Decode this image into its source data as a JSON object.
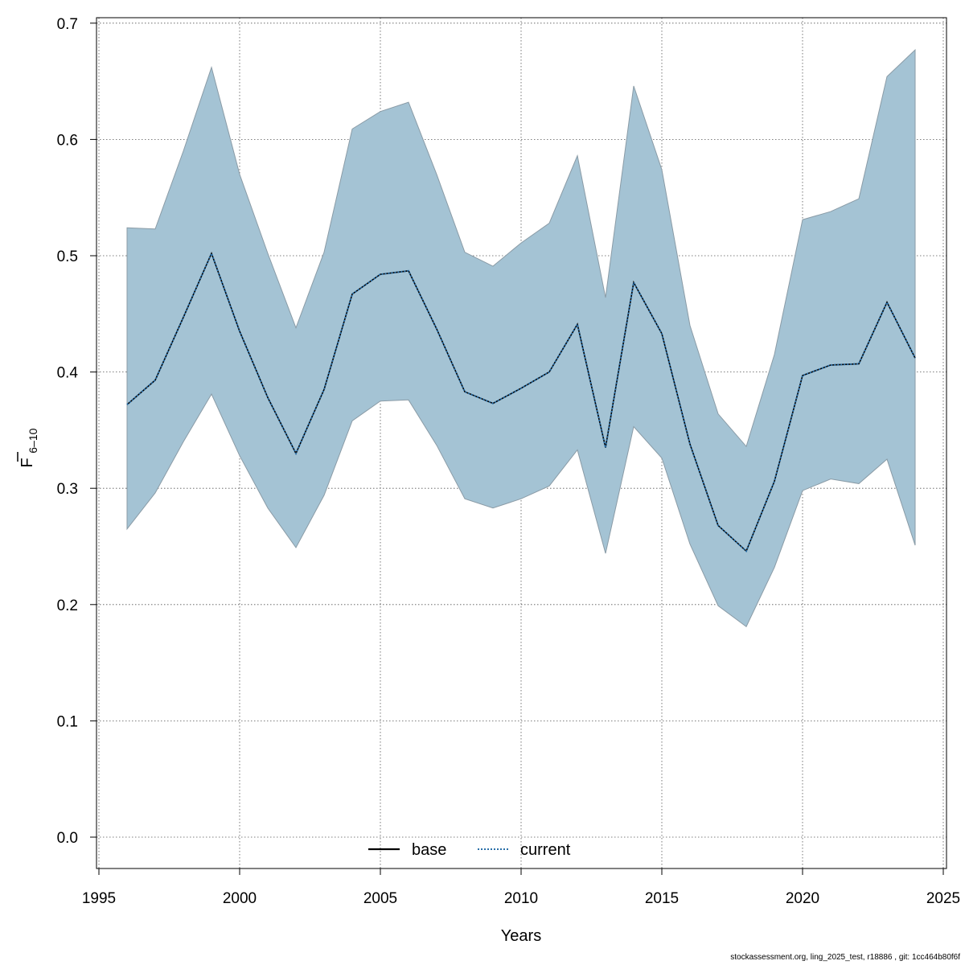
{
  "chart_data": {
    "type": "line",
    "title": "",
    "xlabel": "Years",
    "ylabel": {
      "main": "F",
      "sub": "6–10",
      "overbar": true
    },
    "xlim": [
      1995,
      2025
    ],
    "ylim": [
      0.0,
      0.7
    ],
    "xticks": [
      1995,
      2000,
      2005,
      2010,
      2015,
      2020,
      2025
    ],
    "yticks": [
      0.0,
      0.1,
      0.2,
      0.3,
      0.4,
      0.5,
      0.6,
      0.7
    ],
    "ytick_labels": [
      "0.0",
      "0.1",
      "0.2",
      "0.3",
      "0.4",
      "0.5",
      "0.6",
      "0.7"
    ],
    "grid": true,
    "legend_position": "bottom-center",
    "x": [
      1996,
      1997,
      1998,
      1999,
      2000,
      2001,
      2002,
      2003,
      2004,
      2005,
      2006,
      2007,
      2008,
      2009,
      2010,
      2011,
      2012,
      2013,
      2014,
      2015,
      2016,
      2017,
      2018,
      2019,
      2020,
      2021,
      2022,
      2023,
      2024
    ],
    "series": [
      {
        "name": "base",
        "style": "solid",
        "color": "#000000",
        "values": [
          0.372,
          0.393,
          0.447,
          0.502,
          0.435,
          0.378,
          0.33,
          0.385,
          0.467,
          0.484,
          0.487,
          0.437,
          0.383,
          0.373,
          0.386,
          0.4,
          0.441,
          0.335,
          0.477,
          0.433,
          0.338,
          0.268,
          0.246,
          0.306,
          0.397,
          0.406,
          0.407,
          0.46,
          0.412
        ]
      },
      {
        "name": "current",
        "style": "dotted",
        "color": "#2a6fa8",
        "values": [
          0.372,
          0.393,
          0.447,
          0.502,
          0.435,
          0.378,
          0.33,
          0.385,
          0.467,
          0.484,
          0.487,
          0.437,
          0.383,
          0.373,
          0.386,
          0.4,
          0.441,
          0.335,
          0.477,
          0.433,
          0.338,
          0.268,
          0.246,
          0.306,
          0.397,
          0.406,
          0.407,
          0.46,
          0.412
        ]
      }
    ],
    "band": {
      "color": "#a4c3d4",
      "upper": [
        0.524,
        0.523,
        0.59,
        0.662,
        0.57,
        0.502,
        0.438,
        0.503,
        0.609,
        0.624,
        0.632,
        0.57,
        0.503,
        0.491,
        0.511,
        0.528,
        0.586,
        0.464,
        0.646,
        0.574,
        0.44,
        0.364,
        0.336,
        0.415,
        0.531,
        0.538,
        0.549,
        0.654,
        0.677
      ],
      "lower": [
        0.265,
        0.296,
        0.34,
        0.381,
        0.328,
        0.283,
        0.249,
        0.294,
        0.358,
        0.375,
        0.376,
        0.337,
        0.291,
        0.283,
        0.291,
        0.302,
        0.333,
        0.244,
        0.353,
        0.326,
        0.252,
        0.199,
        0.181,
        0.232,
        0.298,
        0.308,
        0.304,
        0.325,
        0.251
      ]
    }
  },
  "footer": "stockassessment.org, ling_2025_test, r18886 , git: 1cc464b80f6f"
}
